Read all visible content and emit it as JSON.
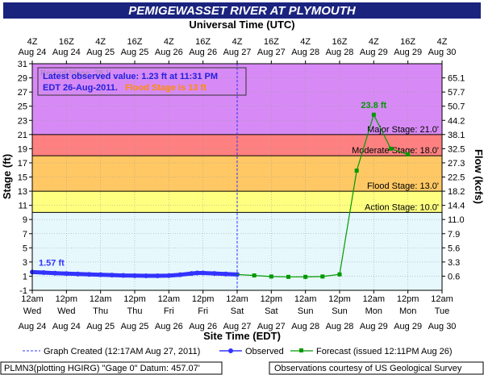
{
  "chart_data": {
    "type": "line",
    "title": "PEMIGEWASSET RIVER AT PLYMOUTH",
    "top_axis_label": "Universal Time (UTC)",
    "xlabel": "Site Time (EDT)",
    "ylabel": "Stage (ft)",
    "ylabel_right": "Flow (kcfs)",
    "ylim": [
      -1,
      31
    ],
    "xlim_hours": [
      0,
      144
    ],
    "y_ticks": [
      -1,
      1,
      3,
      5,
      7,
      9,
      11,
      13,
      15,
      17,
      19,
      21,
      23,
      25,
      27,
      29,
      31
    ],
    "flow_ticks": [
      {
        "stage": 1,
        "label": "0.6"
      },
      {
        "stage": 3,
        "label": "3.3"
      },
      {
        "stage": 5,
        "label": "5.6"
      },
      {
        "stage": 7,
        "label": "7.9"
      },
      {
        "stage": 9,
        "label": "11.0"
      },
      {
        "stage": 11,
        "label": "14.4"
      },
      {
        "stage": 13,
        "label": "18.2"
      },
      {
        "stage": 15,
        "label": "22.5"
      },
      {
        "stage": 17,
        "label": "27.3"
      },
      {
        "stage": 19,
        "label": "32.5"
      },
      {
        "stage": 21,
        "label": "38.1"
      },
      {
        "stage": 23,
        "label": "44.2"
      },
      {
        "stage": 25,
        "label": "50.7"
      },
      {
        "stage": 27,
        "label": "57.7"
      },
      {
        "stage": 29,
        "label": "65.1"
      }
    ],
    "top_ticks": [
      {
        "h": 0,
        "l1": "4Z",
        "l2": "Aug 24"
      },
      {
        "h": 12,
        "l1": "16Z",
        "l2": "Aug 24"
      },
      {
        "h": 24,
        "l1": "4Z",
        "l2": "Aug 25"
      },
      {
        "h": 36,
        "l1": "16Z",
        "l2": "Aug 25"
      },
      {
        "h": 48,
        "l1": "4Z",
        "l2": "Aug 26"
      },
      {
        "h": 60,
        "l1": "16Z",
        "l2": "Aug 26"
      },
      {
        "h": 72,
        "l1": "4Z",
        "l2": "Aug 27"
      },
      {
        "h": 84,
        "l1": "16Z",
        "l2": "Aug 27"
      },
      {
        "h": 96,
        "l1": "4Z",
        "l2": "Aug 28"
      },
      {
        "h": 108,
        "l1": "16Z",
        "l2": "Aug 28"
      },
      {
        "h": 120,
        "l1": "4Z",
        "l2": "Aug 29"
      },
      {
        "h": 132,
        "l1": "16Z",
        "l2": "Aug 29"
      },
      {
        "h": 144,
        "l1": "4Z",
        "l2": "Aug 30"
      }
    ],
    "bottom_ticks": [
      {
        "h": 0,
        "l1": "12am",
        "l2": "Wed",
        "l3": "Aug 24"
      },
      {
        "h": 12,
        "l1": "12pm",
        "l2": "Wed",
        "l3": "Aug 24"
      },
      {
        "h": 24,
        "l1": "12am",
        "l2": "Thu",
        "l3": "Aug 25"
      },
      {
        "h": 36,
        "l1": "12pm",
        "l2": "Thu",
        "l3": "Aug 25"
      },
      {
        "h": 48,
        "l1": "12am",
        "l2": "Fri",
        "l3": "Aug 26"
      },
      {
        "h": 60,
        "l1": "12pm",
        "l2": "Fri",
        "l3": "Aug 26"
      },
      {
        "h": 72,
        "l1": "12am",
        "l2": "Sat",
        "l3": "Aug 27"
      },
      {
        "h": 84,
        "l1": "12pm",
        "l2": "Sat",
        "l3": "Aug 27"
      },
      {
        "h": 96,
        "l1": "12am",
        "l2": "Sun",
        "l3": "Aug 28"
      },
      {
        "h": 108,
        "l1": "12pm",
        "l2": "Sun",
        "l3": "Aug 28"
      },
      {
        "h": 120,
        "l1": "12am",
        "l2": "Mon",
        "l3": "Aug 29"
      },
      {
        "h": 132,
        "l1": "12pm",
        "l2": "Mon",
        "l3": "Aug 29"
      },
      {
        "h": 144,
        "l1": "12am",
        "l2": "Tue",
        "l3": "Aug 30"
      }
    ],
    "bands": [
      {
        "from": 21,
        "to": 31,
        "color": "#d78af5"
      },
      {
        "from": 18,
        "to": 21,
        "color": "#ff8080"
      },
      {
        "from": 13,
        "to": 18,
        "color": "#ffc864"
      },
      {
        "from": 10,
        "to": 13,
        "color": "#ffff80"
      },
      {
        "from": -1,
        "to": 10,
        "color": "#e6f8fc"
      }
    ],
    "thresholds": [
      {
        "stage": 21,
        "label": "Major Stage: 21.0'"
      },
      {
        "stage": 18,
        "label": "Moderate Stage: 18.0'"
      },
      {
        "stage": 13,
        "label": "Flood Stage: 13.0'"
      },
      {
        "stage": 10,
        "label": "Action Stage: 10.0'"
      }
    ],
    "series": [
      {
        "name": "Observed",
        "color": "#3333ff",
        "points": [
          [
            0,
            1.57
          ],
          [
            4,
            1.5
          ],
          [
            8,
            1.42
          ],
          [
            12,
            1.36
          ],
          [
            16,
            1.3
          ],
          [
            20,
            1.25
          ],
          [
            24,
            1.2
          ],
          [
            28,
            1.15
          ],
          [
            32,
            1.1
          ],
          [
            36,
            1.07
          ],
          [
            40,
            1.05
          ],
          [
            44,
            1.05
          ],
          [
            48,
            1.08
          ],
          [
            52,
            1.2
          ],
          [
            56,
            1.38
          ],
          [
            58,
            1.45
          ],
          [
            60,
            1.45
          ],
          [
            64,
            1.38
          ],
          [
            68,
            1.3
          ],
          [
            72,
            1.23
          ]
        ]
      },
      {
        "name": "Forecast",
        "color": "#009900",
        "points": [
          [
            72,
            1.23
          ],
          [
            78,
            1.1
          ],
          [
            84,
            0.95
          ],
          [
            90,
            0.9
          ],
          [
            96,
            0.9
          ],
          [
            102,
            0.95
          ],
          [
            108,
            1.25
          ],
          [
            114,
            15.9
          ],
          [
            120,
            23.8
          ],
          [
            126,
            19.0
          ],
          [
            132,
            18.2
          ]
        ]
      }
    ],
    "peak_label": "23.8 ft",
    "start_label": "1.57 ft",
    "created_line_h": 72,
    "info_box": {
      "faint_text": "Record Stage: 28.1'",
      "line1": "Latest observed value: 1.23 ft at 11:31 PM",
      "line2_prefix": "EDT 26-Aug-2011.",
      "line2_flood": "Flood Stage is 13 ft"
    },
    "legend": {
      "created": "Graph Created (12:17AM Aug 27, 2011)",
      "observed": "Observed",
      "forecast": "Forecast (issued 12:11PM Aug 26)"
    },
    "footer": {
      "left": "PLMN3(plotting HGIRG) \"Gage 0\" Datum: 457.07'",
      "right": "Observations courtesy of US Geological Survey"
    }
  }
}
